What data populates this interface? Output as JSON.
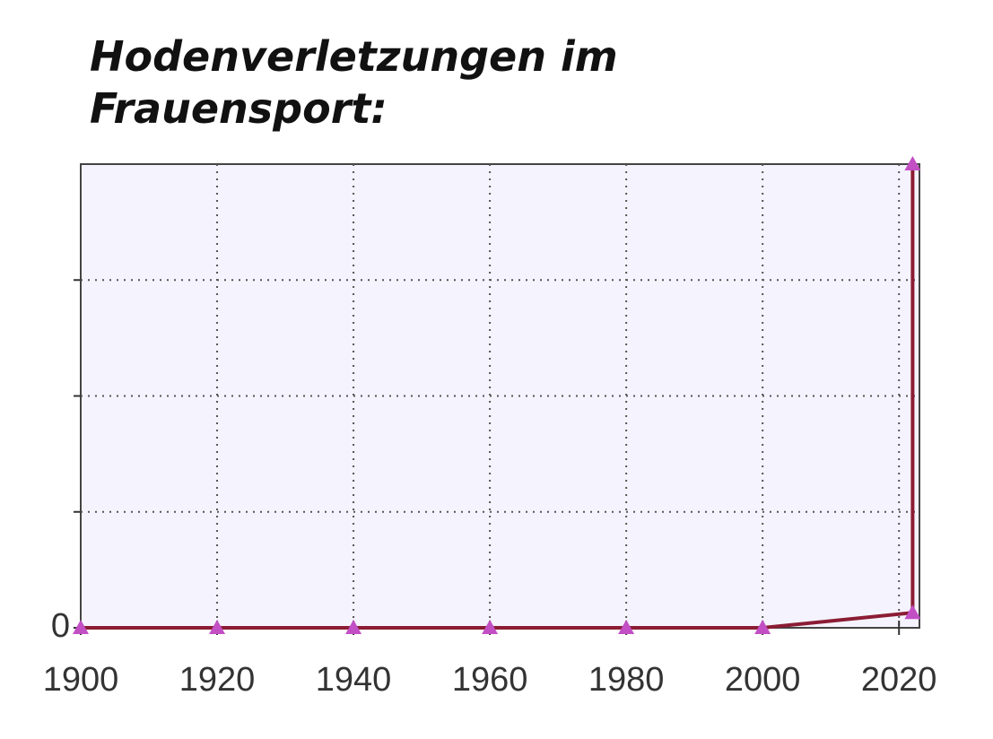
{
  "chart_data": {
    "type": "line",
    "title": "Hodenverletzungen im Frauensport:",
    "x": [
      1900,
      1920,
      1940,
      1960,
      1980,
      2000,
      2022,
      2022
    ],
    "series": [
      {
        "color": "#8b1c34",
        "marker_color": "#c24fc4",
        "values": [
          0,
          0,
          0,
          0,
          0,
          0,
          0.13,
          4
        ]
      }
    ],
    "xlim": [
      1900,
      2023
    ],
    "xticks": [
      1900,
      1920,
      1940,
      1960,
      1980,
      2000,
      2020
    ],
    "ylim": [
      0,
      4
    ],
    "yticks": [
      0
    ],
    "ygrid": [
      1,
      2,
      3
    ],
    "grid": true
  }
}
